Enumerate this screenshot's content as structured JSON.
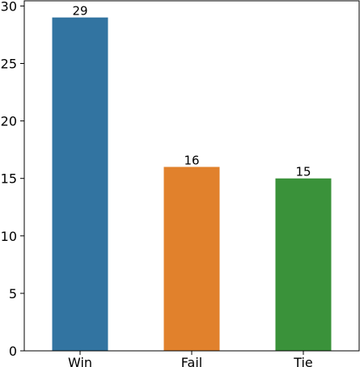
{
  "chart_data": {
    "type": "bar",
    "categories": [
      "Win",
      "Fail",
      "Tie"
    ],
    "values": [
      29,
      16,
      15
    ],
    "colors": [
      "#3274a1",
      "#e1812c",
      "#3a923a"
    ],
    "data_labels": [
      "29",
      "16",
      "15"
    ],
    "title": "",
    "xlabel": "",
    "ylabel": "",
    "ylim": [
      0,
      30.45
    ],
    "yticks": [
      0,
      5,
      10,
      15,
      20,
      25,
      30
    ],
    "ytick_labels": [
      "0",
      "5",
      "10",
      "15",
      "20",
      "25",
      "30"
    ],
    "grid": false,
    "legend": false
  }
}
